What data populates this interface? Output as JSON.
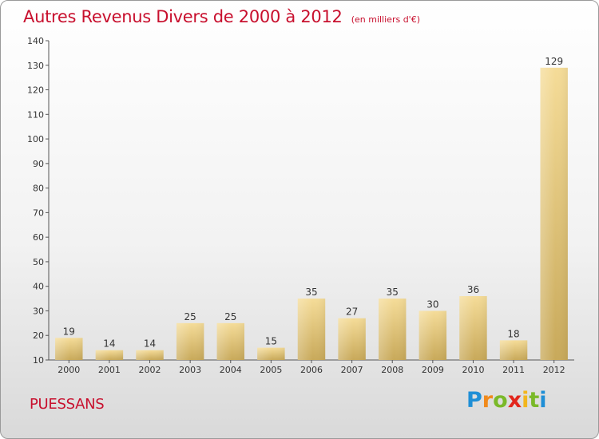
{
  "header": {
    "title": "Autres Revenus Divers de 2000 à 2012",
    "subtitle": "(en milliers d'€)"
  },
  "footer": {
    "commune": "PUESSANS",
    "logo_letters": [
      "P",
      "r",
      "o",
      "x",
      "i",
      "t",
      "i"
    ]
  },
  "colors": {
    "title": "#c8102e",
    "bar_light": "#f5dc98",
    "bar_dark": "#c8a95a"
  },
  "chart_data": {
    "type": "bar",
    "title": "Autres Revenus Divers de 2000 à 2012",
    "subtitle": "(en milliers d'€)",
    "categories": [
      "2000",
      "2001",
      "2002",
      "2003",
      "2004",
      "2005",
      "2006",
      "2007",
      "2008",
      "2009",
      "2010",
      "2011",
      "2012"
    ],
    "values": [
      19,
      14,
      14,
      25,
      25,
      15,
      35,
      27,
      35,
      30,
      36,
      18,
      129
    ],
    "value_labels": [
      "19",
      "14",
      "14",
      "25",
      "25",
      "15",
      "35",
      "27",
      "35",
      "30",
      "36",
      "18",
      "129"
    ],
    "ylim": [
      10,
      140
    ],
    "yticks": [
      10,
      20,
      30,
      40,
      50,
      60,
      70,
      80,
      90,
      100,
      110,
      120,
      130,
      140
    ],
    "ytick_labels": [
      "10",
      "20",
      "30",
      "40",
      "50",
      "60",
      "70",
      "80",
      "90",
      "100",
      "110",
      "120",
      "130",
      "140"
    ],
    "grid": false,
    "legend": "none"
  }
}
